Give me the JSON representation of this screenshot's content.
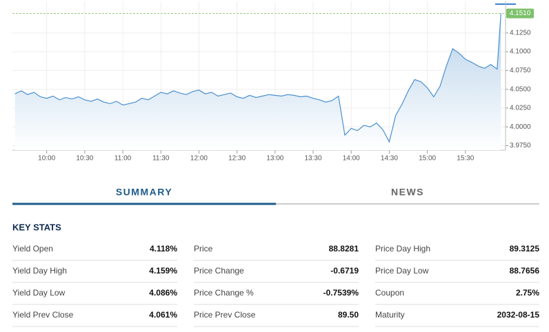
{
  "chart_data": {
    "type": "area",
    "x": [
      575,
      580,
      585,
      590,
      595,
      600,
      605,
      610,
      615,
      620,
      625,
      630,
      635,
      640,
      645,
      650,
      655,
      660,
      665,
      670,
      675,
      680,
      685,
      690,
      695,
      700,
      705,
      710,
      715,
      720,
      725,
      730,
      735,
      740,
      745,
      750,
      755,
      760,
      765,
      770,
      775,
      780,
      785,
      790,
      795,
      800,
      805,
      810,
      815,
      820,
      825,
      830,
      835,
      840,
      845,
      850,
      855,
      860,
      865,
      870,
      875,
      880,
      885,
      890,
      895,
      900,
      905,
      910,
      915,
      920,
      925,
      930,
      935,
      940,
      945,
      950,
      955,
      958
    ],
    "values": [
      4.044,
      4.048,
      4.043,
      4.046,
      4.04,
      4.038,
      4.041,
      4.036,
      4.039,
      4.037,
      4.04,
      4.036,
      4.034,
      4.037,
      4.033,
      4.031,
      4.034,
      4.029,
      4.031,
      4.033,
      4.038,
      4.036,
      4.041,
      4.046,
      4.044,
      4.048,
      4.045,
      4.043,
      4.047,
      4.049,
      4.044,
      4.046,
      4.041,
      4.043,
      4.045,
      4.04,
      4.038,
      4.042,
      4.039,
      4.041,
      4.043,
      4.042,
      4.041,
      4.043,
      4.042,
      4.04,
      4.041,
      4.038,
      4.036,
      4.033,
      4.035,
      4.041,
      3.989,
      3.998,
      3.995,
      4.002,
      4.0,
      4.005,
      3.996,
      3.98,
      4.015,
      4.03,
      4.048,
      4.063,
      4.06,
      4.052,
      4.04,
      4.054,
      4.081,
      4.104,
      4.098,
      4.09,
      4.086,
      4.081,
      4.078,
      4.083,
      4.077,
      4.151
    ],
    "color": "#4a8fd0",
    "xlim": [
      573,
      960
    ],
    "xticks": [
      {
        "value": 600,
        "label": "10:00"
      },
      {
        "value": 630,
        "label": "10:30"
      },
      {
        "value": 660,
        "label": "11:00"
      },
      {
        "value": 690,
        "label": "11:30"
      },
      {
        "value": 720,
        "label": "12:00"
      },
      {
        "value": 750,
        "label": "12:30"
      },
      {
        "value": 780,
        "label": "13:00"
      },
      {
        "value": 810,
        "label": "13:30"
      },
      {
        "value": 840,
        "label": "14:00"
      },
      {
        "value": 870,
        "label": "14:30"
      },
      {
        "value": 900,
        "label": "15:00"
      },
      {
        "value": 930,
        "label": "15:30"
      }
    ],
    "ylim": [
      3.969,
      4.167
    ],
    "yticks": [
      {
        "value": 3.975,
        "label": "3.9750"
      },
      {
        "value": 4.0,
        "label": "4.0000"
      },
      {
        "value": 4.025,
        "label": "4.0250"
      },
      {
        "value": 4.05,
        "label": "4.0500"
      },
      {
        "value": 4.075,
        "label": "4.0750"
      },
      {
        "value": 4.1,
        "label": "4.1000"
      },
      {
        "value": 4.125,
        "label": "4.1250"
      }
    ],
    "current": {
      "value": 4.151,
      "label": "4.1510"
    },
    "grid": true
  },
  "tabs": [
    "SUMMARY",
    "NEWS"
  ],
  "key_stats": {
    "title": "KEY STATS",
    "columns": [
      [
        [
          "Yield Open",
          "4.118%"
        ],
        [
          "Yield Day High",
          "4.159%"
        ],
        [
          "Yield Day Low",
          "4.086%"
        ],
        [
          "Yield Prev Close",
          "4.061%"
        ]
      ],
      [
        [
          "Price",
          "88.8281"
        ],
        [
          "Price Change",
          "-0.6719"
        ],
        [
          "Price Change %",
          "-0.7539%"
        ],
        [
          "Price Prev Close",
          "89.50"
        ]
      ],
      [
        [
          "Price Day High",
          "89.3125"
        ],
        [
          "Price Day Low",
          "88.7656"
        ],
        [
          "Coupon",
          "2.75%"
        ],
        [
          "Maturity",
          "2032-08-15"
        ]
      ]
    ]
  }
}
